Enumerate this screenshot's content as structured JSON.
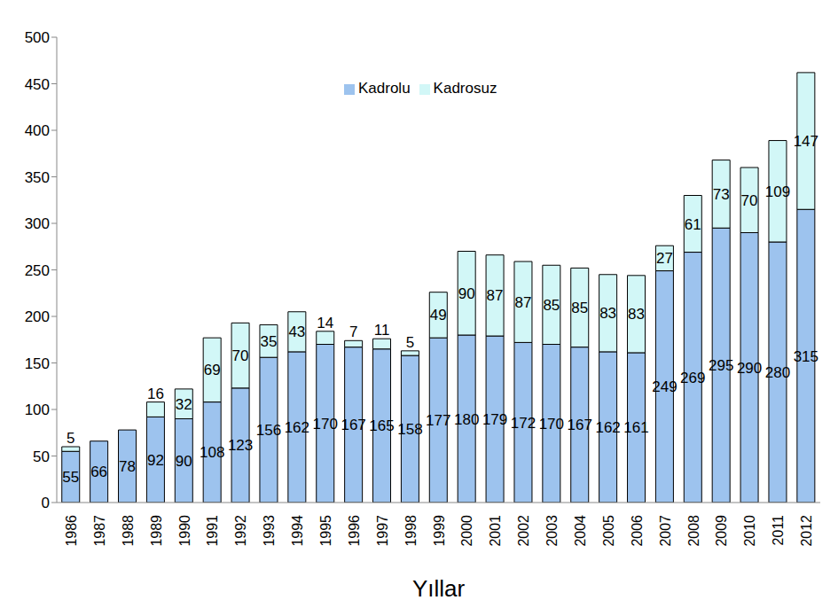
{
  "chart_data": {
    "type": "bar",
    "stacked": true,
    "data_labels": true,
    "legend": "top",
    "x_label": "Yıllar",
    "categories": [
      "1986",
      "1987",
      "1988",
      "1989",
      "1990",
      "1991",
      "1992",
      "1993",
      "1994",
      "1995",
      "1996",
      "1997",
      "1998",
      "1999",
      "2000",
      "2001",
      "2002",
      "2003",
      "2004",
      "2005",
      "2006",
      "2007",
      "2008",
      "2009",
      "2010",
      "2011",
      "2012"
    ],
    "series": [
      {
        "name": "Kadrolu",
        "color": "#9dc3ee",
        "values": [
          55,
          66,
          78,
          92,
          90,
          108,
          123,
          156,
          162,
          170,
          167,
          165,
          158,
          177,
          180,
          179,
          172,
          170,
          167,
          162,
          161,
          249,
          269,
          295,
          290,
          280,
          315
        ]
      },
      {
        "name": "Kadrosuz",
        "color": "#d2f7f7",
        "values": [
          5,
          null,
          null,
          16,
          32,
          69,
          70,
          35,
          43,
          14,
          7,
          11,
          5,
          49,
          90,
          87,
          87,
          85,
          85,
          83,
          83,
          27,
          61,
          73,
          70,
          109,
          147
        ]
      }
    ],
    "ylim": [
      0,
      500
    ],
    "yticks": [
      0,
      50,
      100,
      150,
      200,
      250,
      300,
      350,
      400,
      450,
      500
    ],
    "grid": false
  }
}
